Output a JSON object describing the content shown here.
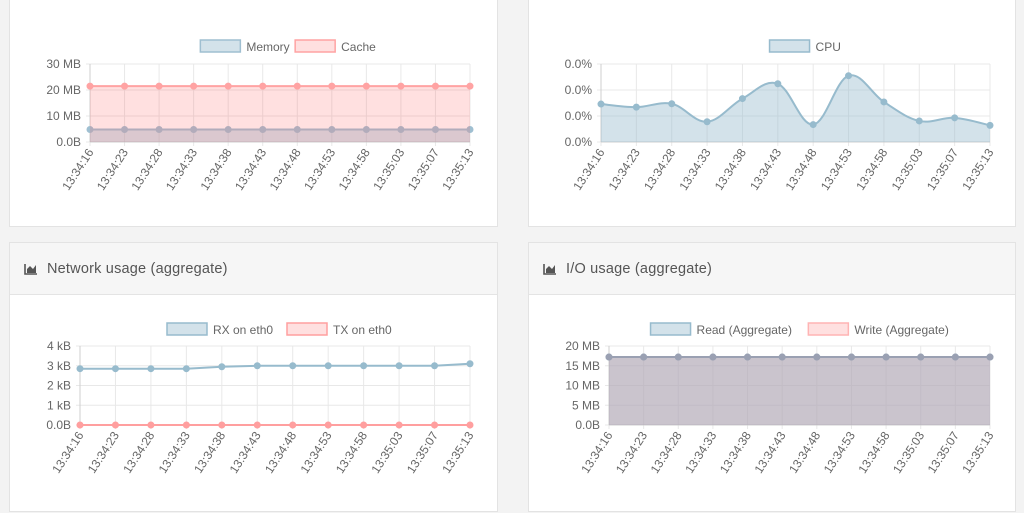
{
  "panels": [
    {
      "id": "memory",
      "title": "",
      "chart_data": {
        "type": "area",
        "x": [
          "13:34:16",
          "13:34:23",
          "13:34:28",
          "13:34:33",
          "13:34:38",
          "13:34:43",
          "13:34:48",
          "13:34:53",
          "13:34:58",
          "13:35:03",
          "13:35:07",
          "13:35:13"
        ],
        "yticks": [
          "0.0B",
          "10 MB",
          "20 MB",
          "30 MB"
        ],
        "ylim": [
          0,
          30
        ],
        "ytick_values": [
          0,
          10,
          20,
          30
        ],
        "legend_position": "top",
        "series": [
          {
            "name": "Memory",
            "values": [
              4.8,
              4.8,
              4.8,
              4.8,
              4.8,
              4.8,
              4.8,
              4.8,
              4.8,
              4.8,
              4.8,
              4.8
            ],
            "color": "#9fbfd1",
            "fill": "rgba(151,187,205,0.42)"
          },
          {
            "name": "Cache",
            "values": [
              21.5,
              21.5,
              21.5,
              21.5,
              21.5,
              21.5,
              21.5,
              21.5,
              21.5,
              21.5,
              21.5,
              21.5
            ],
            "color": "#ffa3a3",
            "fill": "rgba(255,99,99,0.2)"
          }
        ],
        "curve": "linear",
        "grid": true
      }
    },
    {
      "id": "cpu",
      "title": "",
      "chart_data": {
        "type": "area",
        "x": [
          "13:34:16",
          "13:34:23",
          "13:34:28",
          "13:34:33",
          "13:34:38",
          "13:34:43",
          "13:34:48",
          "13:34:53",
          "13:34:58",
          "13:35:03",
          "13:35:07",
          "13:35:13"
        ],
        "yticks": [
          "0.0%",
          "0.0%",
          "0.0%",
          "0.0%"
        ],
        "ylim": [
          0,
          0.03
        ],
        "ytick_values": [
          0,
          0.01,
          0.02,
          0.03
        ],
        "legend_position": "top",
        "series": [
          {
            "name": "CPU",
            "values": [
              0.0146,
              0.0134,
              0.0147,
              0.0078,
              0.0167,
              0.0224,
              0.0067,
              0.0255,
              0.0154,
              0.0081,
              0.0093,
              0.0064
            ],
            "color": "#97bbcd",
            "fill": "rgba(151,187,205,0.42)"
          }
        ],
        "curve": "smooth",
        "grid": true
      }
    },
    {
      "id": "network",
      "title": "Network usage (aggregate)",
      "chart_data": {
        "type": "line",
        "x": [
          "13:34:16",
          "13:34:23",
          "13:34:28",
          "13:34:33",
          "13:34:38",
          "13:34:43",
          "13:34:48",
          "13:34:53",
          "13:34:58",
          "13:35:03",
          "13:35:07",
          "13:35:13"
        ],
        "yticks": [
          "0.0B",
          "1 kB",
          "2 kB",
          "3 kB",
          "4 kB"
        ],
        "ylim": [
          0,
          4
        ],
        "ytick_values": [
          0,
          1,
          2,
          3,
          4
        ],
        "legend_position": "top",
        "series": [
          {
            "name": "RX on eth0",
            "values": [
              2.85,
              2.85,
              2.85,
              2.85,
              2.95,
              3.0,
              3.0,
              3.0,
              3.0,
              3.0,
              3.0,
              3.1
            ],
            "color": "#97bbcd",
            "fill": "none"
          },
          {
            "name": "TX on eth0",
            "values": [
              0,
              0,
              0,
              0,
              0,
              0,
              0,
              0,
              0,
              0,
              0,
              0
            ],
            "color": "#ff9f9f",
            "fill": "none"
          }
        ],
        "curve": "linear",
        "grid": true
      }
    },
    {
      "id": "io",
      "title": "I/O usage (aggregate)",
      "chart_data": {
        "type": "area",
        "x": [
          "13:34:16",
          "13:34:23",
          "13:34:28",
          "13:34:33",
          "13:34:38",
          "13:34:43",
          "13:34:48",
          "13:34:53",
          "13:34:58",
          "13:35:03",
          "13:35:07",
          "13:35:13"
        ],
        "yticks": [
          "0.0B",
          "5 MB",
          "10 MB",
          "15 MB",
          "20 MB"
        ],
        "ylim": [
          0,
          20
        ],
        "ytick_values": [
          0,
          5,
          10,
          15,
          20
        ],
        "legend_position": "top",
        "series": [
          {
            "name": "Read (Aggregate)",
            "values": [
              17.2,
              17.2,
              17.2,
              17.2,
              17.2,
              17.2,
              17.2,
              17.2,
              17.2,
              17.2,
              17.2,
              17.2
            ],
            "color": "#97bbcd",
            "fill": "rgba(151,187,205,0.42)"
          },
          {
            "name": "Write (Aggregate)",
            "values": [
              17.2,
              17.2,
              17.2,
              17.2,
              17.2,
              17.2,
              17.2,
              17.2,
              17.2,
              17.2,
              17.2,
              17.2
            ],
            "color": "#9aa0b2",
            "fill": "rgba(190,160,170,0.45)"
          }
        ],
        "curve": "linear",
        "grid": true
      }
    }
  ],
  "icons": {
    "chart_icon": "area-chart-icon"
  }
}
